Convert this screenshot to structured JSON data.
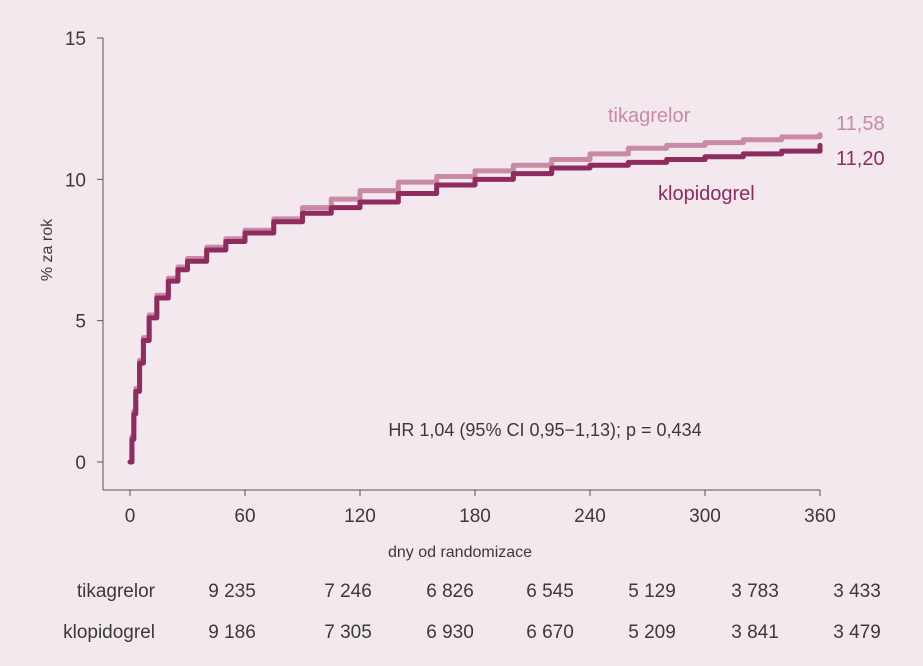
{
  "chart_data": {
    "type": "line",
    "xlabel": "dny od randomizace",
    "ylabel": "% za rok",
    "xlim": [
      0,
      360
    ],
    "ylim": [
      0,
      15
    ],
    "x_ticks": [
      0,
      60,
      120,
      180,
      240,
      300,
      360
    ],
    "y_ticks": [
      0,
      5,
      10,
      15
    ],
    "grid": false,
    "series": [
      {
        "name": "tikagrelor",
        "color": "#c98aa6",
        "end_label": "11,58",
        "x": [
          0,
          1,
          2,
          3,
          5,
          7,
          10,
          14,
          20,
          25,
          30,
          40,
          50,
          60,
          75,
          90,
          105,
          120,
          140,
          160,
          180,
          200,
          220,
          240,
          260,
          280,
          300,
          320,
          340,
          360
        ],
        "y": [
          0,
          0.9,
          1.8,
          2.6,
          3.6,
          4.4,
          5.2,
          5.9,
          6.5,
          6.9,
          7.2,
          7.6,
          7.9,
          8.2,
          8.6,
          9.0,
          9.3,
          9.6,
          9.9,
          10.1,
          10.3,
          10.5,
          10.7,
          10.9,
          11.1,
          11.2,
          11.3,
          11.4,
          11.5,
          11.58
        ]
      },
      {
        "name": "klopidogrel",
        "color": "#8e2b5f",
        "end_label": "11,20",
        "x": [
          0,
          1,
          2,
          3,
          5,
          7,
          10,
          14,
          20,
          25,
          30,
          40,
          50,
          60,
          75,
          90,
          105,
          120,
          140,
          160,
          180,
          200,
          220,
          240,
          260,
          280,
          300,
          320,
          340,
          360
        ],
        "y": [
          0,
          0.8,
          1.7,
          2.5,
          3.5,
          4.3,
          5.1,
          5.8,
          6.4,
          6.8,
          7.1,
          7.5,
          7.8,
          8.1,
          8.5,
          8.8,
          9.0,
          9.2,
          9.5,
          9.8,
          10.0,
          10.2,
          10.4,
          10.5,
          10.6,
          10.7,
          10.8,
          10.9,
          11.0,
          11.2
        ]
      }
    ],
    "annotation": "HR 1,04 (95% CI 0,95−1,13); p = 0,434"
  },
  "risk_table": {
    "rows": [
      {
        "label": "tikagrelor",
        "values": [
          "9 235",
          "7 246",
          "6 826",
          "6 545",
          "5 129",
          "3 783",
          "3 433"
        ]
      },
      {
        "label": "klopidogrel",
        "values": [
          "9 186",
          "7 305",
          "6 930",
          "6 670",
          "5 209",
          "3 841",
          "3 479"
        ]
      }
    ]
  }
}
